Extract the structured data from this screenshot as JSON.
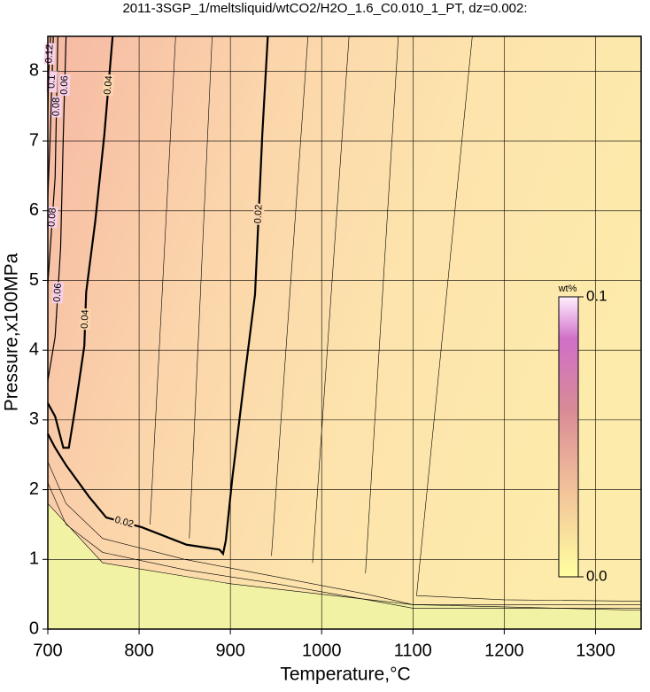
{
  "chart_data": {
    "type": "contour",
    "title": "2011-3SGP_1/meltsliquid/wtCO2/H2O_1.6_C0.010_1_PT, dz=0.002:",
    "xlabel": "Temperature,°C",
    "ylabel": "Pressure,x100MPa",
    "xlim": [
      700,
      1350
    ],
    "ylim": [
      0,
      8.5
    ],
    "xticks": [
      700,
      800,
      900,
      1000,
      1100,
      1200,
      1300
    ],
    "yticks": [
      0,
      1,
      2,
      3,
      4,
      5,
      6,
      7,
      8
    ],
    "grid": true,
    "contours": [
      {
        "level": 0.02,
        "x": [
          941,
          935,
          927,
          915,
          902,
          895,
          892,
          888,
          852,
          803,
          764,
          745,
          720,
          708,
          700
        ],
        "y": [
          8.5,
          7.1,
          4.8,
          3.55,
          2.15,
          1.27,
          1.08,
          1.14,
          1.21,
          1.46,
          1.6,
          1.9,
          2.35,
          2.6,
          2.8
        ]
      },
      {
        "level": 0.04,
        "x": [
          771,
          762,
          752,
          742,
          740,
          730,
          723,
          717,
          708,
          700
        ],
        "y": [
          8.5,
          7.1,
          5.85,
          4.83,
          4.06,
          3.17,
          2.6,
          2.6,
          3.05,
          3.24
        ]
      },
      {
        "level": 0.06,
        "x": [
          720,
          717,
          714,
          708,
          700
        ],
        "y": [
          8.5,
          7.1,
          5.46,
          4.19,
          3.56
        ]
      },
      {
        "level": 0.08,
        "x": [
          711,
          708,
          702,
          700
        ],
        "y": [
          8.5,
          6.48,
          5.33,
          4.95
        ]
      },
      {
        "level": 0.1,
        "x": [
          706,
          703,
          700
        ],
        "y": [
          8.5,
          7.2,
          6.2
        ]
      },
      {
        "level": 0.12,
        "x": [
          703,
          701,
          700
        ],
        "y": [
          8.5,
          8.0,
          7.4
        ]
      }
    ],
    "thin_contours": [
      {
        "x": [
          1165,
          1104,
          1200,
          1350
        ],
        "y": [
          8.5,
          0.48,
          0.42,
          0.4
        ]
      },
      {
        "x": [
          1084,
          1048
        ],
        "y": [
          8.5,
          0.8
        ]
      },
      {
        "x": [
          1030,
          990
        ],
        "y": [
          8.5,
          0.95
        ]
      },
      {
        "x": [
          985,
          945
        ],
        "y": [
          8.5,
          1.05
        ]
      },
      {
        "x": [
          880,
          855
        ],
        "y": [
          8.5,
          1.3
        ]
      },
      {
        "x": [
          840,
          812
        ],
        "y": [
          8.5,
          1.5
        ]
      },
      {
        "x": [
          700,
          720,
          760,
          850,
          950,
          1050,
          1100,
          1350
        ],
        "y": [
          2.4,
          1.8,
          1.3,
          1.0,
          0.75,
          0.5,
          0.35,
          0.35
        ]
      },
      {
        "x": [
          700,
          720,
          760,
          850,
          950,
          1050,
          1100,
          1350
        ],
        "y": [
          2.1,
          1.5,
          1.1,
          0.85,
          0.65,
          0.42,
          0.3,
          0.3
        ]
      },
      {
        "x": [
          700,
          760,
          900,
          1100,
          1350
        ],
        "y": [
          1.8,
          0.95,
          0.65,
          0.35,
          0.27
        ]
      }
    ],
    "colorbar": {
      "label": "wt%",
      "lim": [
        0,
        0.1
      ],
      "ticks": [
        {
          "value": 0,
          "label": "0.0"
        },
        0.1
      ]
    }
  }
}
